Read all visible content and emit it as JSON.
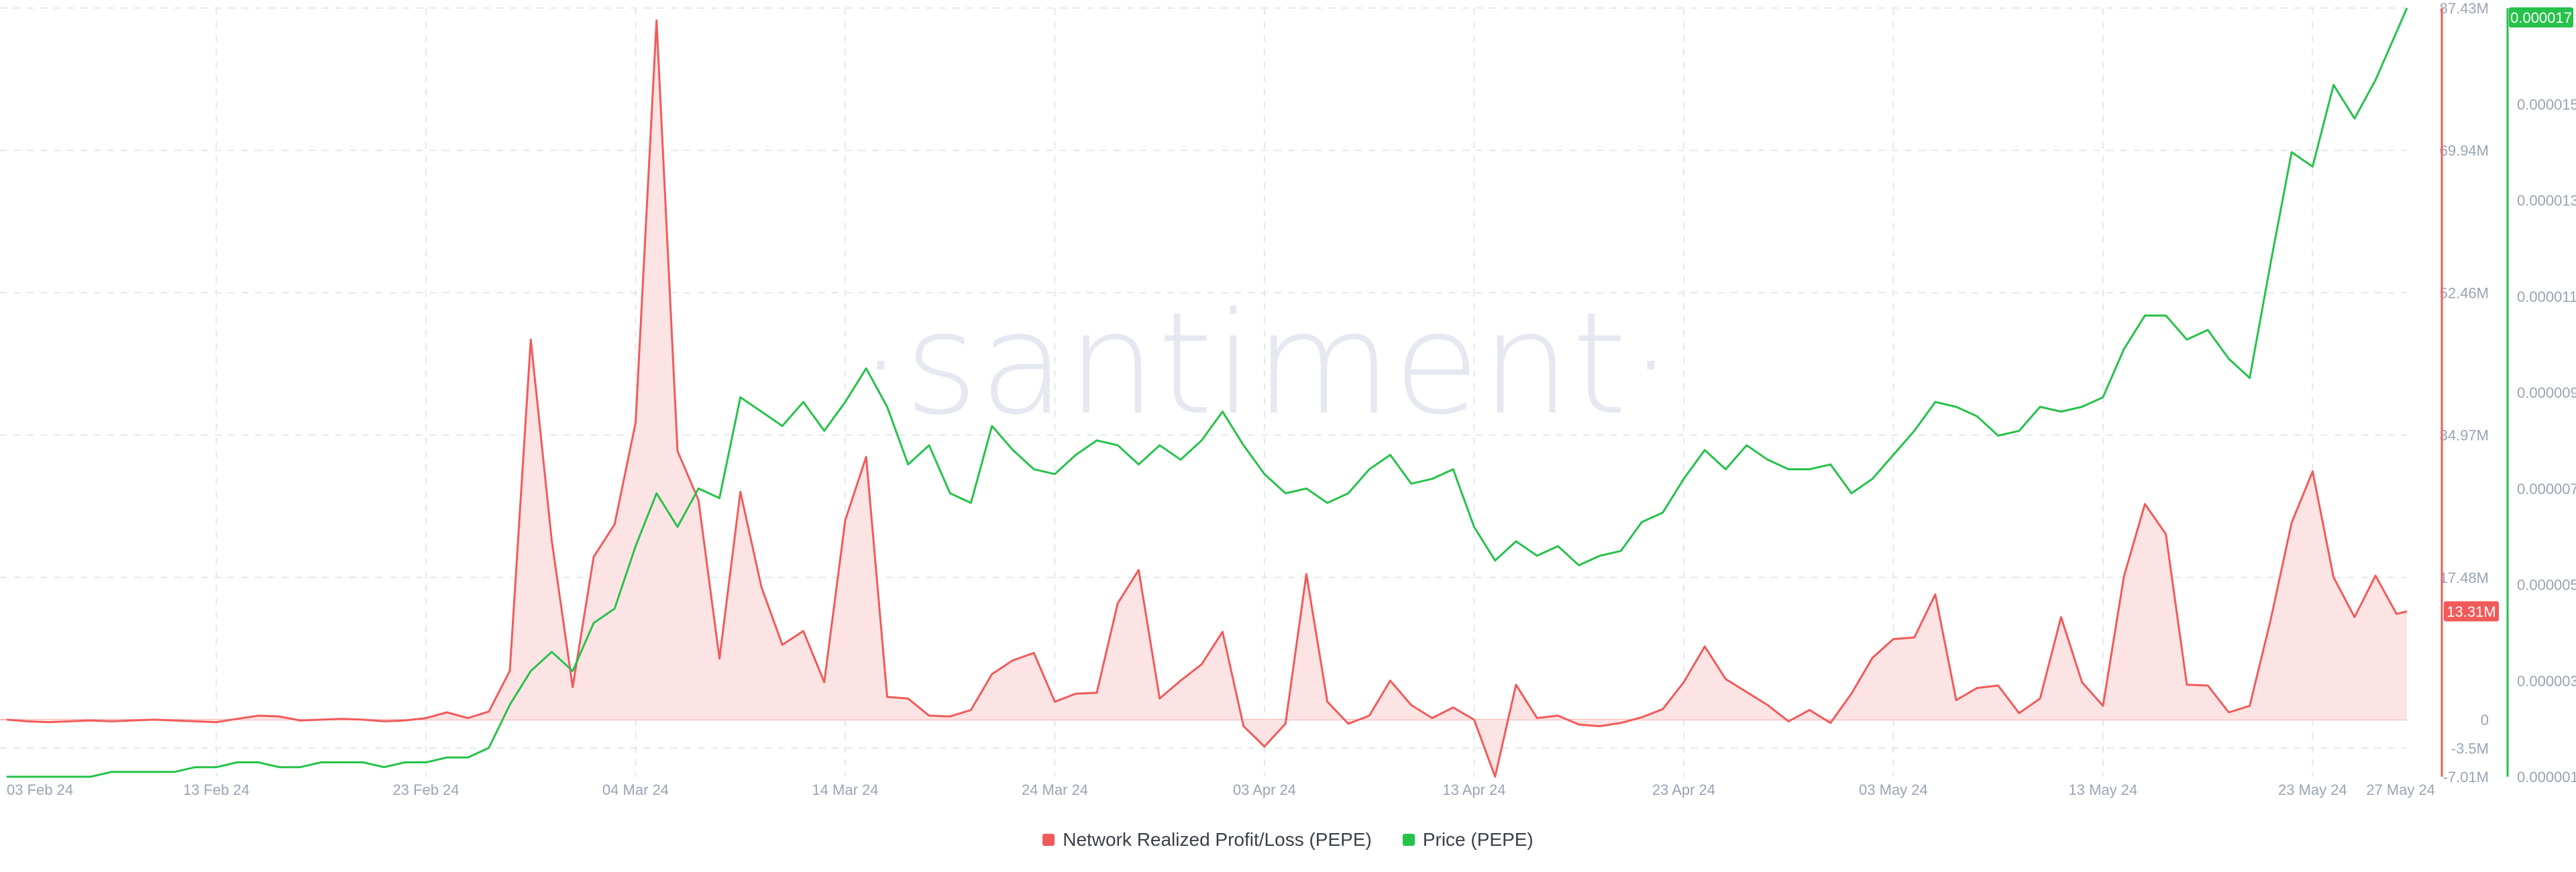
{
  "watermark": "·santiment·",
  "colors": {
    "profit_loss": "#f25a5a",
    "profit_loss_fill": "#fde4e4",
    "price": "#26c24a",
    "grid": "#e4e7ed",
    "tick_text": "#9aa3b5",
    "watermark": "#e6e8f1"
  },
  "chart_data": {
    "type": "line",
    "grid": true,
    "legend_position": "bottom-center",
    "x_ticks": [
      "03 Feb 24",
      "13 Feb 24",
      "23 Feb 24",
      "04 Mar 24",
      "14 Mar 24",
      "24 Mar 24",
      "03 Apr 24",
      "13 Apr 24",
      "23 Apr 24",
      "03 May 24",
      "13 May 24",
      "23 May 24",
      "27 May 24"
    ],
    "x_range": [
      "2024-02-03",
      "2024-05-27"
    ],
    "left_axis": {
      "label": "Network Realized Profit/Loss (PEPE)",
      "ticks": [
        {
          "v": 87430000,
          "t": "87.43M"
        },
        {
          "v": 69940000,
          "t": "69.94M"
        },
        {
          "v": 52460000,
          "t": "52.46M"
        },
        {
          "v": 34970000,
          "t": "34.97M"
        },
        {
          "v": 17480000,
          "t": "17.48M"
        },
        {
          "v": 0,
          "t": "0"
        },
        {
          "v": -3500000,
          "t": "-3.5M"
        },
        {
          "v": -7010000,
          "t": "-7.01M"
        }
      ],
      "range": [
        -7010000,
        87430000
      ],
      "current_label": "13.31M"
    },
    "right_axis": {
      "label": "Price (PEPE)",
      "ticks": [
        {
          "v": 1.5e-05,
          "t": "0.000015"
        },
        {
          "v": 1.3e-05,
          "t": "0.000013"
        },
        {
          "v": 1.1e-05,
          "t": "0.000011"
        },
        {
          "v": 9e-06,
          "t": "0.000009"
        },
        {
          "v": 7e-06,
          "t": "0.000007"
        },
        {
          "v": 5e-06,
          "t": "0.000005"
        },
        {
          "v": 3e-06,
          "t": "0.000003"
        },
        {
          "v": 1e-06,
          "t": "0.000001"
        }
      ],
      "range": [
        1e-06,
        1.7e-05
      ],
      "current_label": "0.000017"
    },
    "series": [
      {
        "name": "Network Realized Profit/Loss (PEPE)",
        "axis": "left",
        "area": true,
        "points": [
          [
            "2024-02-03",
            0
          ],
          [
            "2024-02-04",
            -200000
          ],
          [
            "2024-02-05",
            -300000
          ],
          [
            "2024-02-06",
            -200000
          ],
          [
            "2024-02-07",
            -100000
          ],
          [
            "2024-02-08",
            -200000
          ],
          [
            "2024-02-09",
            -100000
          ],
          [
            "2024-02-10",
            0
          ],
          [
            "2024-02-11",
            -100000
          ],
          [
            "2024-02-12",
            -200000
          ],
          [
            "2024-02-13",
            -300000
          ],
          [
            "2024-02-14",
            100000
          ],
          [
            "2024-02-15",
            500000
          ],
          [
            "2024-02-16",
            400000
          ],
          [
            "2024-02-17",
            -100000
          ],
          [
            "2024-02-18",
            0
          ],
          [
            "2024-02-19",
            100000
          ],
          [
            "2024-02-20",
            0
          ],
          [
            "2024-02-21",
            -200000
          ],
          [
            "2024-02-22",
            -100000
          ],
          [
            "2024-02-23",
            200000
          ],
          [
            "2024-02-24",
            900000
          ],
          [
            "2024-02-25",
            200000
          ],
          [
            "2024-02-26",
            1000000
          ],
          [
            "2024-02-27",
            6000000
          ],
          [
            "2024-02-28",
            46700000
          ],
          [
            "2024-02-29",
            22000000
          ],
          [
            "2024-03-01",
            4000000
          ],
          [
            "2024-03-02",
            20000000
          ],
          [
            "2024-03-03",
            24000000
          ],
          [
            "2024-03-04",
            36500000
          ],
          [
            "2024-03-05",
            85900000
          ],
          [
            "2024-03-06",
            33000000
          ],
          [
            "2024-03-07",
            27000000
          ],
          [
            "2024-03-08",
            7500000
          ],
          [
            "2024-03-09",
            28000000
          ],
          [
            "2024-03-10",
            16300000
          ],
          [
            "2024-03-11",
            9200000
          ],
          [
            "2024-03-12",
            10900000
          ],
          [
            "2024-03-13",
            4600000
          ],
          [
            "2024-03-14",
            24500000
          ],
          [
            "2024-03-15",
            32300000
          ],
          [
            "2024-03-16",
            2800000
          ],
          [
            "2024-03-17",
            2600000
          ],
          [
            "2024-03-18",
            500000
          ],
          [
            "2024-03-19",
            400000
          ],
          [
            "2024-03-20",
            1200000
          ],
          [
            "2024-03-21",
            5600000
          ],
          [
            "2024-03-22",
            7300000
          ],
          [
            "2024-03-23",
            8200000
          ],
          [
            "2024-03-24",
            2200000
          ],
          [
            "2024-03-25",
            3200000
          ],
          [
            "2024-03-26",
            3300000
          ],
          [
            "2024-03-27",
            14300000
          ],
          [
            "2024-03-28",
            18400000
          ],
          [
            "2024-03-29",
            2600000
          ],
          [
            "2024-03-30",
            4800000
          ],
          [
            "2024-03-31",
            6800000
          ],
          [
            "2024-04-01",
            10800000
          ],
          [
            "2024-04-02",
            -800000
          ],
          [
            "2024-04-03",
            -3300000
          ],
          [
            "2024-04-04",
            -500000
          ],
          [
            "2024-04-05",
            17900000
          ],
          [
            "2024-04-06",
            2200000
          ],
          [
            "2024-04-07",
            -500000
          ],
          [
            "2024-04-08",
            500000
          ],
          [
            "2024-04-09",
            4800000
          ],
          [
            "2024-04-10",
            1800000
          ],
          [
            "2024-04-11",
            200000
          ],
          [
            "2024-04-12",
            1500000
          ],
          [
            "2024-04-13",
            0
          ],
          [
            "2024-04-14",
            -7000000
          ],
          [
            "2024-04-15",
            4300000
          ],
          [
            "2024-04-16",
            200000
          ],
          [
            "2024-04-17",
            500000
          ],
          [
            "2024-04-18",
            -600000
          ],
          [
            "2024-04-19",
            -800000
          ],
          [
            "2024-04-20",
            -400000
          ],
          [
            "2024-04-21",
            300000
          ],
          [
            "2024-04-22",
            1300000
          ],
          [
            "2024-04-23",
            4600000
          ],
          [
            "2024-04-24",
            9000000
          ],
          [
            "2024-04-25",
            5000000
          ],
          [
            "2024-04-26",
            3400000
          ],
          [
            "2024-04-27",
            1800000
          ],
          [
            "2024-04-28",
            -200000
          ],
          [
            "2024-04-29",
            1200000
          ],
          [
            "2024-04-30",
            -400000
          ],
          [
            "2024-05-01",
            3200000
          ],
          [
            "2024-05-02",
            7600000
          ],
          [
            "2024-05-03",
            9900000
          ],
          [
            "2024-05-04",
            10100000
          ],
          [
            "2024-05-05",
            15400000
          ],
          [
            "2024-05-06",
            2400000
          ],
          [
            "2024-05-07",
            3900000
          ],
          [
            "2024-05-08",
            4200000
          ],
          [
            "2024-05-09",
            800000
          ],
          [
            "2024-05-10",
            2600000
          ],
          [
            "2024-05-11",
            12600000
          ],
          [
            "2024-05-12",
            4600000
          ],
          [
            "2024-05-13",
            1700000
          ],
          [
            "2024-05-14",
            17600000
          ],
          [
            "2024-05-15",
            26500000
          ],
          [
            "2024-05-16",
            22800000
          ],
          [
            "2024-05-17",
            4300000
          ],
          [
            "2024-05-18",
            4200000
          ],
          [
            "2024-05-19",
            900000
          ],
          [
            "2024-05-20",
            1700000
          ],
          [
            "2024-05-21",
            12300000
          ],
          [
            "2024-05-22",
            24200000
          ],
          [
            "2024-05-23",
            30500000
          ],
          [
            "2024-05-24",
            17500000
          ],
          [
            "2024-05-25",
            12600000
          ],
          [
            "2024-05-26",
            17700000
          ],
          [
            "2024-05-27",
            13000000
          ],
          [
            "2024-05-27T12:00",
            13310000
          ]
        ]
      },
      {
        "name": "Price (PEPE)",
        "axis": "right",
        "area": false,
        "points": [
          [
            "2024-02-03",
            1e-06
          ],
          [
            "2024-02-05",
            1e-06
          ],
          [
            "2024-02-07",
            1e-06
          ],
          [
            "2024-02-08",
            1.1e-06
          ],
          [
            "2024-02-09",
            1.1e-06
          ],
          [
            "2024-02-10",
            1.1e-06
          ],
          [
            "2024-02-11",
            1.1e-06
          ],
          [
            "2024-02-12",
            1.2e-06
          ],
          [
            "2024-02-13",
            1.2e-06
          ],
          [
            "2024-02-14",
            1.3e-06
          ],
          [
            "2024-02-15",
            1.3e-06
          ],
          [
            "2024-02-16",
            1.2e-06
          ],
          [
            "2024-02-17",
            1.2e-06
          ],
          [
            "2024-02-18",
            1.3e-06
          ],
          [
            "2024-02-19",
            1.3e-06
          ],
          [
            "2024-02-20",
            1.3e-06
          ],
          [
            "2024-02-21",
            1.2e-06
          ],
          [
            "2024-02-22",
            1.3e-06
          ],
          [
            "2024-02-23",
            1.3e-06
          ],
          [
            "2024-02-24",
            1.4e-06
          ],
          [
            "2024-02-25",
            1.4e-06
          ],
          [
            "2024-02-26",
            1.6e-06
          ],
          [
            "2024-02-27",
            2.5e-06
          ],
          [
            "2024-02-28",
            3.2e-06
          ],
          [
            "2024-02-29",
            3.6e-06
          ],
          [
            "2024-03-01",
            3.2e-06
          ],
          [
            "2024-03-02",
            4.2e-06
          ],
          [
            "2024-03-03",
            4.5e-06
          ],
          [
            "2024-03-04",
            5.8e-06
          ],
          [
            "2024-03-05",
            6.9e-06
          ],
          [
            "2024-03-06",
            6.2e-06
          ],
          [
            "2024-03-07",
            7e-06
          ],
          [
            "2024-03-08",
            6.8e-06
          ],
          [
            "2024-03-09",
            8.9e-06
          ],
          [
            "2024-03-10",
            8.6e-06
          ],
          [
            "2024-03-11",
            8.3e-06
          ],
          [
            "2024-03-12",
            8.8e-06
          ],
          [
            "2024-03-13",
            8.2e-06
          ],
          [
            "2024-03-14",
            8.8e-06
          ],
          [
            "2024-03-15",
            9.5e-06
          ],
          [
            "2024-03-16",
            8.7e-06
          ],
          [
            "2024-03-17",
            7.5e-06
          ],
          [
            "2024-03-18",
            7.9e-06
          ],
          [
            "2024-03-19",
            6.9e-06
          ],
          [
            "2024-03-20",
            6.7e-06
          ],
          [
            "2024-03-21",
            8.3e-06
          ],
          [
            "2024-03-22",
            7.8e-06
          ],
          [
            "2024-03-23",
            7.4e-06
          ],
          [
            "2024-03-24",
            7.3e-06
          ],
          [
            "2024-03-25",
            7.7e-06
          ],
          [
            "2024-03-26",
            8e-06
          ],
          [
            "2024-03-27",
            7.9e-06
          ],
          [
            "2024-03-28",
            7.5e-06
          ],
          [
            "2024-03-29",
            7.9e-06
          ],
          [
            "2024-03-30",
            7.6e-06
          ],
          [
            "2024-03-31",
            8e-06
          ],
          [
            "2024-04-01",
            8.6e-06
          ],
          [
            "2024-04-02",
            7.9e-06
          ],
          [
            "2024-04-03",
            7.3e-06
          ],
          [
            "2024-04-04",
            6.9e-06
          ],
          [
            "2024-04-05",
            7e-06
          ],
          [
            "2024-04-06",
            6.7e-06
          ],
          [
            "2024-04-07",
            6.9e-06
          ],
          [
            "2024-04-08",
            7.4e-06
          ],
          [
            "2024-04-09",
            7.7e-06
          ],
          [
            "2024-04-10",
            7.1e-06
          ],
          [
            "2024-04-11",
            7.2e-06
          ],
          [
            "2024-04-12",
            7.4e-06
          ],
          [
            "2024-04-13",
            6.2e-06
          ],
          [
            "2024-04-14",
            5.5e-06
          ],
          [
            "2024-04-15",
            5.9e-06
          ],
          [
            "2024-04-16",
            5.6e-06
          ],
          [
            "2024-04-17",
            5.8e-06
          ],
          [
            "2024-04-18",
            5.4e-06
          ],
          [
            "2024-04-19",
            5.6e-06
          ],
          [
            "2024-04-20",
            5.7e-06
          ],
          [
            "2024-04-21",
            6.3e-06
          ],
          [
            "2024-04-22",
            6.5e-06
          ],
          [
            "2024-04-23",
            7.2e-06
          ],
          [
            "2024-04-24",
            7.8e-06
          ],
          [
            "2024-04-25",
            7.4e-06
          ],
          [
            "2024-04-26",
            7.9e-06
          ],
          [
            "2024-04-27",
            7.6e-06
          ],
          [
            "2024-04-28",
            7.4e-06
          ],
          [
            "2024-04-29",
            7.4e-06
          ],
          [
            "2024-04-30",
            7.5e-06
          ],
          [
            "2024-05-01",
            6.9e-06
          ],
          [
            "2024-05-02",
            7.2e-06
          ],
          [
            "2024-05-03",
            7.7e-06
          ],
          [
            "2024-05-04",
            8.2e-06
          ],
          [
            "2024-05-05",
            8.8e-06
          ],
          [
            "2024-05-06",
            8.7e-06
          ],
          [
            "2024-05-07",
            8.5e-06
          ],
          [
            "2024-05-08",
            8.1e-06
          ],
          [
            "2024-05-09",
            8.2e-06
          ],
          [
            "2024-05-10",
            8.7e-06
          ],
          [
            "2024-05-11",
            8.6e-06
          ],
          [
            "2024-05-12",
            8.7e-06
          ],
          [
            "2024-05-13",
            8.9e-06
          ],
          [
            "2024-05-14",
            9.9e-06
          ],
          [
            "2024-05-15",
            1.06e-05
          ],
          [
            "2024-05-16",
            1.06e-05
          ],
          [
            "2024-05-17",
            1.01e-05
          ],
          [
            "2024-05-18",
            1.03e-05
          ],
          [
            "2024-05-19",
            9.7e-06
          ],
          [
            "2024-05-20",
            9.3e-06
          ],
          [
            "2024-05-21",
            1.17e-05
          ],
          [
            "2024-05-22",
            1.4e-05
          ],
          [
            "2024-05-23",
            1.37e-05
          ],
          [
            "2024-05-24",
            1.54e-05
          ],
          [
            "2024-05-25",
            1.47e-05
          ],
          [
            "2024-05-26",
            1.55e-05
          ],
          [
            "2024-05-27",
            1.65e-05
          ],
          [
            "2024-05-27T12:00",
            1.7e-05
          ]
        ]
      }
    ]
  },
  "legend": {
    "items": [
      {
        "label": "Network Realized Profit/Loss (PEPE)",
        "color": "#f25a5a"
      },
      {
        "label": "Price (PEPE)",
        "color": "#26c24a"
      }
    ]
  }
}
